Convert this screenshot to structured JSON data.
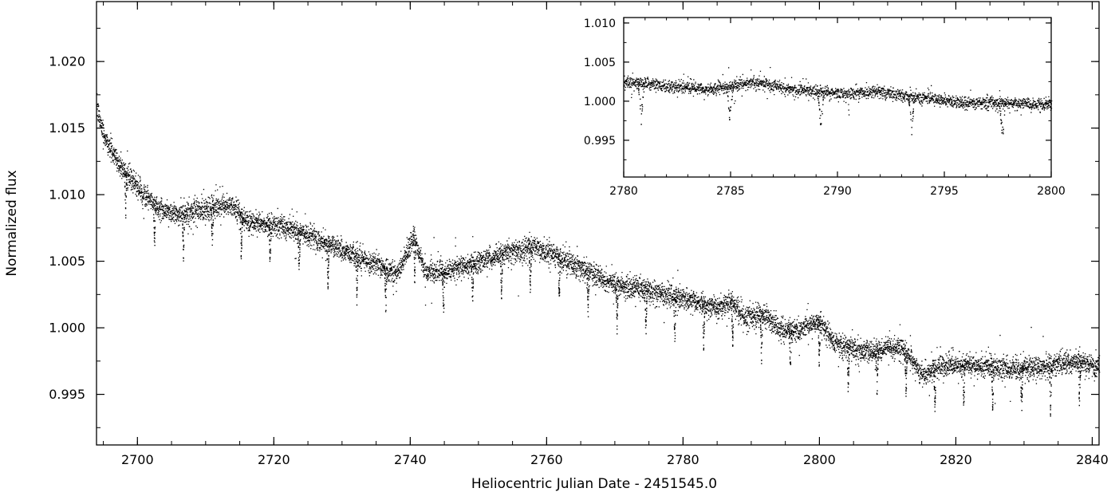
{
  "chart_data": [
    {
      "type": "scatter",
      "title": "",
      "xlabel": "Heliocentric Julian Date - 2451545.0",
      "ylabel": "Normalized flux",
      "xlim": [
        2694,
        2841
      ],
      "ylim": [
        0.9912,
        1.0245
      ],
      "x_ticks": [
        2700,
        2720,
        2740,
        2760,
        2780,
        2800,
        2820,
        2840
      ],
      "x_tick_labels": [
        "2700",
        "2720",
        "2740",
        "2760",
        "2780",
        "2800",
        "2820",
        "2840"
      ],
      "y_ticks": [
        0.995,
        1.0,
        1.005,
        1.01,
        1.015,
        1.02
      ],
      "y_tick_labels": [
        "0.995",
        "1.000",
        "1.005",
        "1.010",
        "1.015",
        "1.020"
      ],
      "grid": false,
      "series": [
        {
          "color": "#000000",
          "trend_x": [
            2694,
            2695,
            2697,
            2700,
            2703,
            2706,
            2709,
            2712,
            2714,
            2716,
            2720,
            2725,
            2730,
            2735,
            2738,
            2740.5,
            2742,
            2745,
            2750,
            2755,
            2758,
            2760,
            2765,
            2770,
            2775,
            2780,
            2785,
            2787,
            2789,
            2792,
            2794,
            2796,
            2800,
            2802,
            2804,
            2808,
            2810,
            2812,
            2813,
            2815,
            2818,
            2822,
            2826,
            2830,
            2834,
            2838,
            2841
          ],
          "trend_y": [
            1.0165,
            1.0145,
            1.0125,
            1.0105,
            1.009,
            1.0085,
            1.0088,
            1.0092,
            1.0092,
            1.008,
            1.0078,
            1.007,
            1.0058,
            1.0048,
            1.004,
            1.007,
            1.0043,
            1.0042,
            1.005,
            1.0058,
            1.006,
            1.0057,
            1.0045,
            1.0033,
            1.0028,
            1.0022,
            1.0015,
            1.002,
            1.0008,
            1.001,
            1.0,
            0.9998,
            1.0005,
            0.999,
            0.9985,
            0.9982,
            0.9985,
            0.9985,
            0.998,
            0.9965,
            0.9972,
            0.9973,
            0.997,
            0.997,
            0.9972,
            0.9975,
            0.997
          ],
          "scatter_sigma": 0.0004,
          "eclipse_period": 4.2378,
          "eclipse_first_x": 2698.2,
          "eclipse_depth": 0.0035
        }
      ]
    },
    {
      "type": "scatter",
      "title": "",
      "xlim": [
        2780,
        2800
      ],
      "ylim": [
        0.9903,
        1.0107
      ],
      "x_ticks": [
        2780,
        2785,
        2790,
        2795,
        2800
      ],
      "x_tick_labels": [
        "2780",
        "2785",
        "2790",
        "2795",
        "2800"
      ],
      "y_ticks": [
        0.995,
        1.0,
        1.005,
        1.01
      ],
      "y_tick_labels": [
        "0.995",
        "1.000",
        "1.005",
        "1.010"
      ],
      "grid": false,
      "series": [
        {
          "color": "#000000",
          "trend_x": [
            2780,
            2782,
            2784,
            2786,
            2788,
            2790,
            2792,
            2794,
            2796,
            2798,
            2800
          ],
          "trend_y": [
            1.0025,
            1.002,
            1.0015,
            1.0025,
            1.0015,
            1.001,
            1.0012,
            1.0005,
            0.9998,
            0.9998,
            0.9996
          ],
          "scatter_sigma": 0.0004,
          "eclipse_centers": [
            2780.8,
            2784.95,
            2789.2,
            2793.45,
            2797.7
          ],
          "eclipse_depth": 0.0048
        }
      ]
    }
  ]
}
